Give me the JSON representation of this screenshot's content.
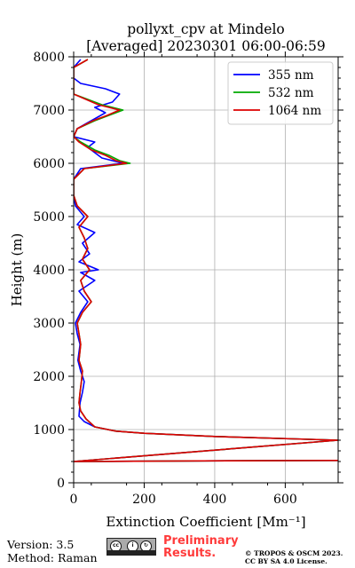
{
  "chart_data": {
    "type": "line",
    "title": "pollyxt_cpv at Mindelo",
    "subtitle": "[Averaged] 20230301 06:00-06:59",
    "xlabel": "Extinction Coefficient [Mm⁻¹]",
    "ylabel": "Height (m)",
    "xlim": [
      0,
      750
    ],
    "ylim": [
      0,
      8000
    ],
    "xticks": [
      0,
      200,
      400,
      600
    ],
    "yticks": [
      0,
      1000,
      2000,
      3000,
      4000,
      5000,
      6000,
      7000,
      8000
    ],
    "grid": true,
    "legend_position": "top-right",
    "series": [
      {
        "name": "355 nm",
        "color": "#0000ff",
        "points": [
          [
            750,
            420
          ],
          [
            300,
            410
          ],
          [
            0,
            400
          ],
          [
            750,
            800
          ],
          [
            400,
            870
          ],
          [
            200,
            930
          ],
          [
            120,
            970
          ],
          [
            60,
            1050
          ],
          [
            30,
            1150
          ],
          [
            15,
            1250
          ],
          [
            18,
            1500
          ],
          [
            25,
            1700
          ],
          [
            30,
            1900
          ],
          [
            20,
            2100
          ],
          [
            12,
            2300
          ],
          [
            18,
            2600
          ],
          [
            10,
            2800
          ],
          [
            5,
            3000
          ],
          [
            20,
            3200
          ],
          [
            40,
            3400
          ],
          [
            15,
            3600
          ],
          [
            60,
            3800
          ],
          [
            20,
            3950
          ],
          [
            70,
            4000
          ],
          [
            15,
            4150
          ],
          [
            45,
            4300
          ],
          [
            25,
            4500
          ],
          [
            60,
            4700
          ],
          [
            10,
            4850
          ],
          [
            30,
            5000
          ],
          [
            5,
            5200
          ],
          [
            0,
            5400
          ],
          [
            0,
            5700
          ],
          [
            20,
            5900
          ],
          [
            140,
            6000
          ],
          [
            80,
            6100
          ],
          [
            60,
            6200
          ],
          [
            40,
            6300
          ],
          [
            60,
            6400
          ],
          [
            0,
            6500
          ],
          [
            10,
            6650
          ],
          [
            50,
            6800
          ],
          [
            90,
            6950
          ],
          [
            60,
            7050
          ],
          [
            110,
            7150
          ],
          [
            130,
            7300
          ],
          [
            90,
            7400
          ],
          [
            20,
            7500
          ],
          [
            0,
            7600
          ],
          [
            0,
            7800
          ],
          [
            20,
            7950
          ]
        ]
      },
      {
        "name": "532 nm",
        "color": "#00aa00",
        "points": [
          [
            750,
            420
          ],
          [
            300,
            410
          ],
          [
            0,
            400
          ],
          [
            750,
            800
          ],
          [
            400,
            870
          ],
          [
            200,
            930
          ],
          [
            120,
            970
          ],
          [
            60,
            1050
          ],
          [
            35,
            1200
          ],
          [
            20,
            1350
          ],
          [
            15,
            1500
          ],
          [
            18,
            1700
          ],
          [
            22,
            1900
          ],
          [
            25,
            2100
          ],
          [
            15,
            2300
          ],
          [
            20,
            2600
          ],
          [
            15,
            2800
          ],
          [
            10,
            3000
          ],
          [
            25,
            3200
          ],
          [
            50,
            3400
          ],
          [
            30,
            3600
          ],
          [
            20,
            3800
          ],
          [
            45,
            4000
          ],
          [
            25,
            4200
          ],
          [
            40,
            4400
          ],
          [
            30,
            4600
          ],
          [
            15,
            4800
          ],
          [
            40,
            5000
          ],
          [
            10,
            5200
          ],
          [
            0,
            5400
          ],
          [
            0,
            5700
          ],
          [
            30,
            5900
          ],
          [
            160,
            6000
          ],
          [
            130,
            6050
          ],
          [
            100,
            6150
          ],
          [
            60,
            6250
          ],
          [
            20,
            6400
          ],
          [
            0,
            6500
          ],
          [
            10,
            6650
          ],
          [
            60,
            6800
          ],
          [
            100,
            6900
          ],
          [
            140,
            7000
          ],
          [
            80,
            7100
          ],
          [
            40,
            7200
          ],
          [
            0,
            7300
          ],
          [
            0,
            7800
          ],
          [
            40,
            7950
          ]
        ]
      },
      {
        "name": "1064 nm",
        "color": "#dd0000",
        "points": [
          [
            750,
            420
          ],
          [
            300,
            410
          ],
          [
            0,
            400
          ],
          [
            750,
            800
          ],
          [
            400,
            870
          ],
          [
            200,
            930
          ],
          [
            120,
            970
          ],
          [
            60,
            1050
          ],
          [
            35,
            1200
          ],
          [
            20,
            1350
          ],
          [
            15,
            1500
          ],
          [
            18,
            1700
          ],
          [
            22,
            1900
          ],
          [
            25,
            2100
          ],
          [
            15,
            2300
          ],
          [
            20,
            2600
          ],
          [
            15,
            2800
          ],
          [
            10,
            3000
          ],
          [
            25,
            3200
          ],
          [
            50,
            3400
          ],
          [
            30,
            3600
          ],
          [
            20,
            3800
          ],
          [
            45,
            4000
          ],
          [
            25,
            4200
          ],
          [
            40,
            4400
          ],
          [
            30,
            4600
          ],
          [
            15,
            4800
          ],
          [
            40,
            5000
          ],
          [
            10,
            5200
          ],
          [
            0,
            5400
          ],
          [
            0,
            5700
          ],
          [
            30,
            5900
          ],
          [
            150,
            6000
          ],
          [
            120,
            6050
          ],
          [
            90,
            6150
          ],
          [
            50,
            6250
          ],
          [
            15,
            6400
          ],
          [
            0,
            6500
          ],
          [
            10,
            6650
          ],
          [
            55,
            6800
          ],
          [
            95,
            6900
          ],
          [
            130,
            7000
          ],
          [
            70,
            7100
          ],
          [
            35,
            7200
          ],
          [
            0,
            7300
          ],
          [
            0,
            7800
          ],
          [
            40,
            7950
          ]
        ]
      }
    ]
  },
  "footer": {
    "version": "Version: 3.5",
    "method": "Method: Raman",
    "license_badge_text": "cc by sa",
    "preliminary_line1": "Preliminary",
    "preliminary_line2": "Results.",
    "copyright_line1": "© TROPOS & OSCM 2023.",
    "copyright_line2": "CC BY SA 4.0 License."
  },
  "colors": {
    "grid": "#b0b0b0",
    "preliminary_text": "#ff3b3b"
  }
}
